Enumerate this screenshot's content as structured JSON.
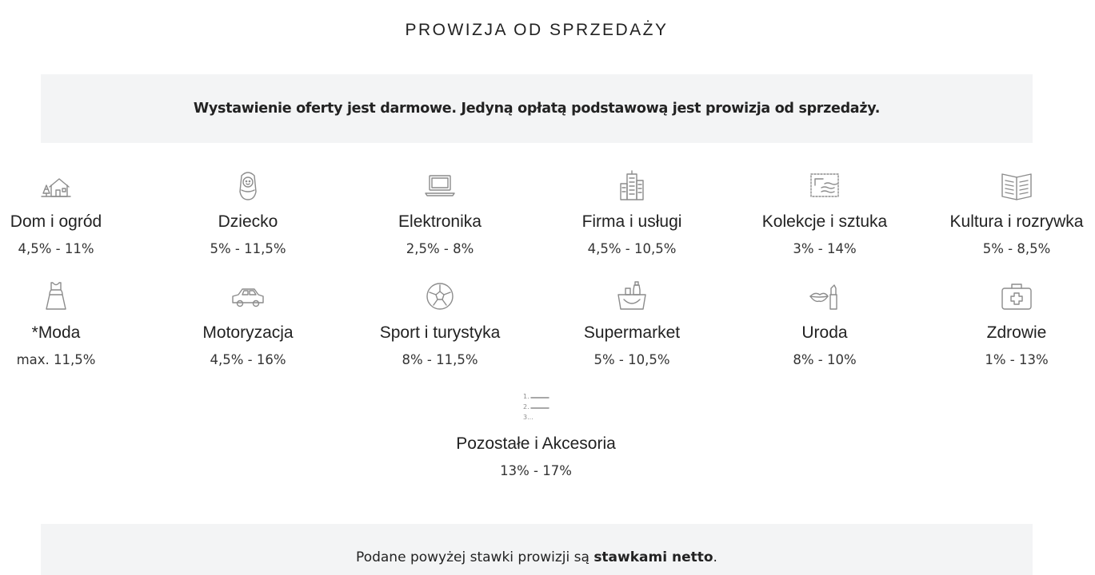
{
  "header": {
    "title": "PROWIZJA OD SPRZEDAŻY"
  },
  "info": {
    "text": "Wystawienie oferty jest darmowe. Jedyną opłatą podstawową jest prowizja od sprzedaży."
  },
  "categories": [
    {
      "name": "Dom i ogród",
      "rate": "4,5% - 11%",
      "icon": "house-tree-icon"
    },
    {
      "name": "Dziecko",
      "rate": "5% - 11,5%",
      "icon": "baby-icon"
    },
    {
      "name": "Elektronika",
      "rate": "2,5% - 8%",
      "icon": "laptop-icon"
    },
    {
      "name": "Firma i usługi",
      "rate": "4,5% - 10,5%",
      "icon": "office-building-icon"
    },
    {
      "name": "Kolekcje i sztuka",
      "rate": "3% - 14%",
      "icon": "stamp-icon"
    },
    {
      "name": "Kultura i rozrywka",
      "rate": "5% - 8,5%",
      "icon": "open-book-icon"
    },
    {
      "name": "*Moda",
      "rate": "max. 11,5%",
      "icon": "dress-icon"
    },
    {
      "name": "Motoryzacja",
      "rate": "4,5% - 16%",
      "icon": "car-icon"
    },
    {
      "name": "Sport i turystyka",
      "rate": "8% - 11,5%",
      "icon": "soccer-ball-icon"
    },
    {
      "name": "Supermarket",
      "rate": "5% - 10,5%",
      "icon": "shopping-basket-icon"
    },
    {
      "name": "Uroda",
      "rate": "8% - 10%",
      "icon": "lipstick-icon"
    },
    {
      "name": "Zdrowie",
      "rate": "1% - 13%",
      "icon": "first-aid-kit-icon"
    },
    {
      "name": "Pozostałe i Akcesoria",
      "rate": "13% - 17%",
      "icon": "numbered-list-icon"
    }
  ],
  "note": {
    "prefix": "Podane powyżej stawki prowizji są ",
    "bold": "stawkami netto",
    "suffix": "."
  },
  "colors": {
    "icon_stroke": "#8c8c8c",
    "box_background": "#f3f4f5",
    "text": "#222222"
  }
}
